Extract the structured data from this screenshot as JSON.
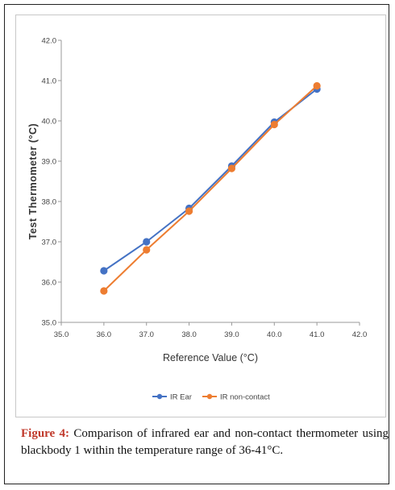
{
  "chart_data": {
    "type": "line",
    "xlabel": "Reference Value (°C)",
    "ylabel": "Test Thermometer (°C)",
    "xlim": [
      35.0,
      42.0
    ],
    "ylim": [
      35.0,
      42.0
    ],
    "xticks": [
      "35.0",
      "36.0",
      "37.0",
      "38.0",
      "39.0",
      "40.0",
      "41.0",
      "42.0"
    ],
    "yticks": [
      "35.0",
      "36.0",
      "37.0",
      "38.0",
      "39.0",
      "40.0",
      "41.0",
      "42.0"
    ],
    "grid": false,
    "legend_position": "bottom",
    "series": [
      {
        "name": "IR Ear",
        "color": "#4472c4",
        "x": [
          36,
          37,
          38,
          39,
          40,
          41
        ],
        "y": [
          36.28,
          37.0,
          37.83,
          38.88,
          39.97,
          40.79
        ]
      },
      {
        "name": "IR non-contact",
        "color": "#ed7d31",
        "x": [
          36,
          37,
          38,
          39,
          40,
          41
        ],
        "y": [
          35.78,
          36.8,
          37.76,
          38.82,
          39.91,
          40.87
        ]
      }
    ]
  },
  "caption": {
    "label": "Figure 4:",
    "text": " Comparison of infrared ear and non-contact thermometer using blackbody 1 within the temperature range of 36-41°C."
  }
}
